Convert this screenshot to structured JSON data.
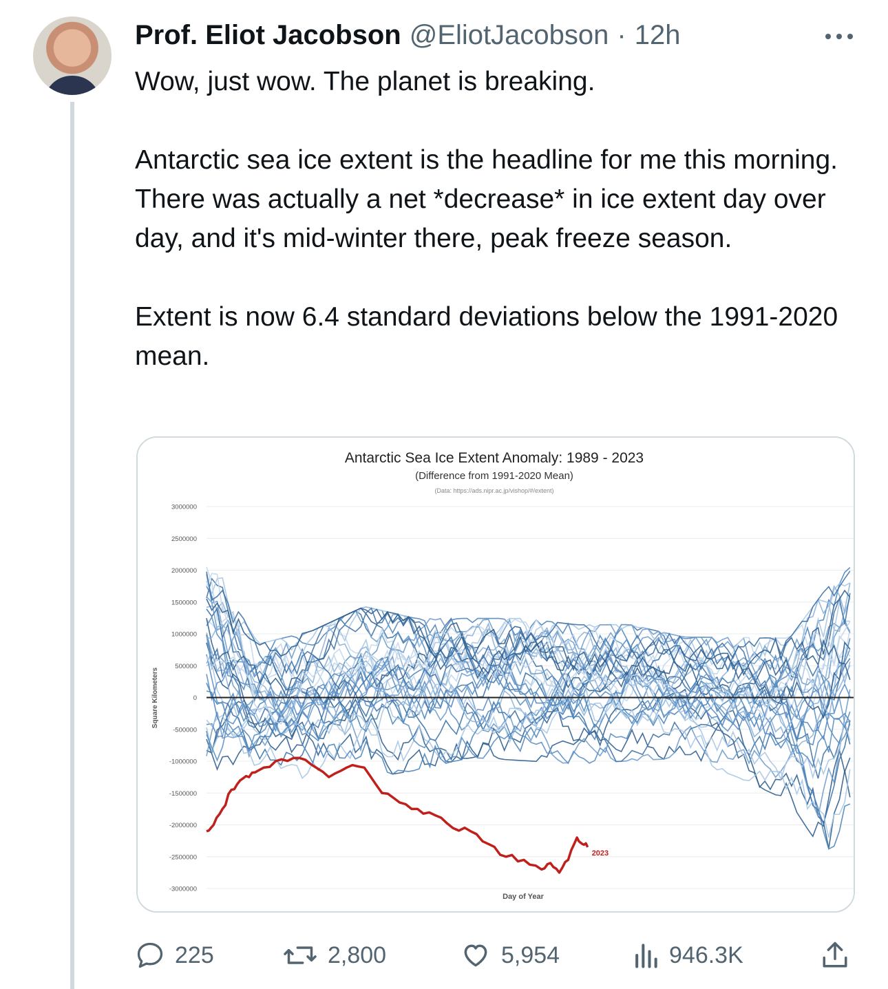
{
  "author": {
    "name": "Prof. Eliot Jacobson",
    "handle": "@EliotJacobson",
    "separator": "·",
    "time": "12h"
  },
  "tweet": {
    "text": "Wow, just wow. The planet is breaking.\n\nAntarctic sea ice extent is the headline for me this morning. There was actually a net *decrease* in ice extent day over day, and it's mid-winter there, peak freeze season.\n\nExtent is now 6.4 standard deviations below the 1991-2020 mean."
  },
  "actions": {
    "replies": "225",
    "reposts": "2,800",
    "likes": "5,954",
    "views": "946.3K"
  },
  "icons": {
    "more": "more-dots-icon",
    "reply": "reply-bubble-icon",
    "repost": "repost-arrows-icon",
    "like": "heart-icon",
    "views": "views-bar-chart-icon",
    "share": "share-upload-icon"
  },
  "colors": {
    "text": "#0f1419",
    "secondary": "#536471",
    "border": "#cfd9de",
    "highlight_series": "#c0201c",
    "history_series": "#4f86bd"
  },
  "chart_data": {
    "type": "line",
    "title": "Antarctic Sea Ice Extent Anomaly: 1989 - 2023",
    "subtitle": "(Difference from 1991-2020 Mean)",
    "source": "(Data: https://ads.nipr.ac.jp/vishop/#/extent)",
    "xlabel": "Day of Year",
    "ylabel": "Square Kilometers",
    "ylim": [
      -3000000,
      3000000
    ],
    "yticks": [
      "3000000",
      "2500000",
      "2000000",
      "1500000",
      "1000000",
      "500000",
      "0",
      "-500000",
      "-1000000",
      "-1500000",
      "-2000000",
      "-2500000",
      "-3000000"
    ],
    "xlim": [
      1,
      366
    ],
    "grid": true,
    "highlight_series": {
      "name": "2023",
      "x": [
        1,
        5,
        10,
        15,
        20,
        25,
        30,
        40,
        50,
        60,
        70,
        80,
        90,
        100,
        110,
        120,
        130,
        140,
        150,
        160,
        170,
        180,
        190,
        195,
        200,
        205,
        210,
        213,
        216
      ],
      "values": [
        -2100000,
        -2000000,
        -1750000,
        -1450000,
        -1300000,
        -1250000,
        -1150000,
        -1000000,
        -950000,
        -1050000,
        -1250000,
        -1100000,
        -1100000,
        -1500000,
        -1650000,
        -1750000,
        -1850000,
        -2050000,
        -2100000,
        -2300000,
        -2500000,
        -2550000,
        -2700000,
        -2600000,
        -2750000,
        -2550000,
        -2200000,
        -2300000,
        -2350000
      ]
    },
    "historical_series_count": 34,
    "historical_envelope": {
      "x": [
        1,
        30,
        60,
        90,
        120,
        150,
        180,
        210,
        240,
        270,
        300,
        330,
        350,
        366
      ],
      "upper": [
        2450000,
        900000,
        1100000,
        1500000,
        1300000,
        1300000,
        1300000,
        1200000,
        1200000,
        1000000,
        1000000,
        1000000,
        1800000,
        2200000
      ],
      "lower": [
        -1600000,
        -1500000,
        -1300000,
        -1350000,
        -1200000,
        -1000000,
        -1050000,
        -1100000,
        -1050000,
        -1000000,
        -1300000,
        -1700000,
        -2600000,
        -2100000
      ]
    }
  }
}
